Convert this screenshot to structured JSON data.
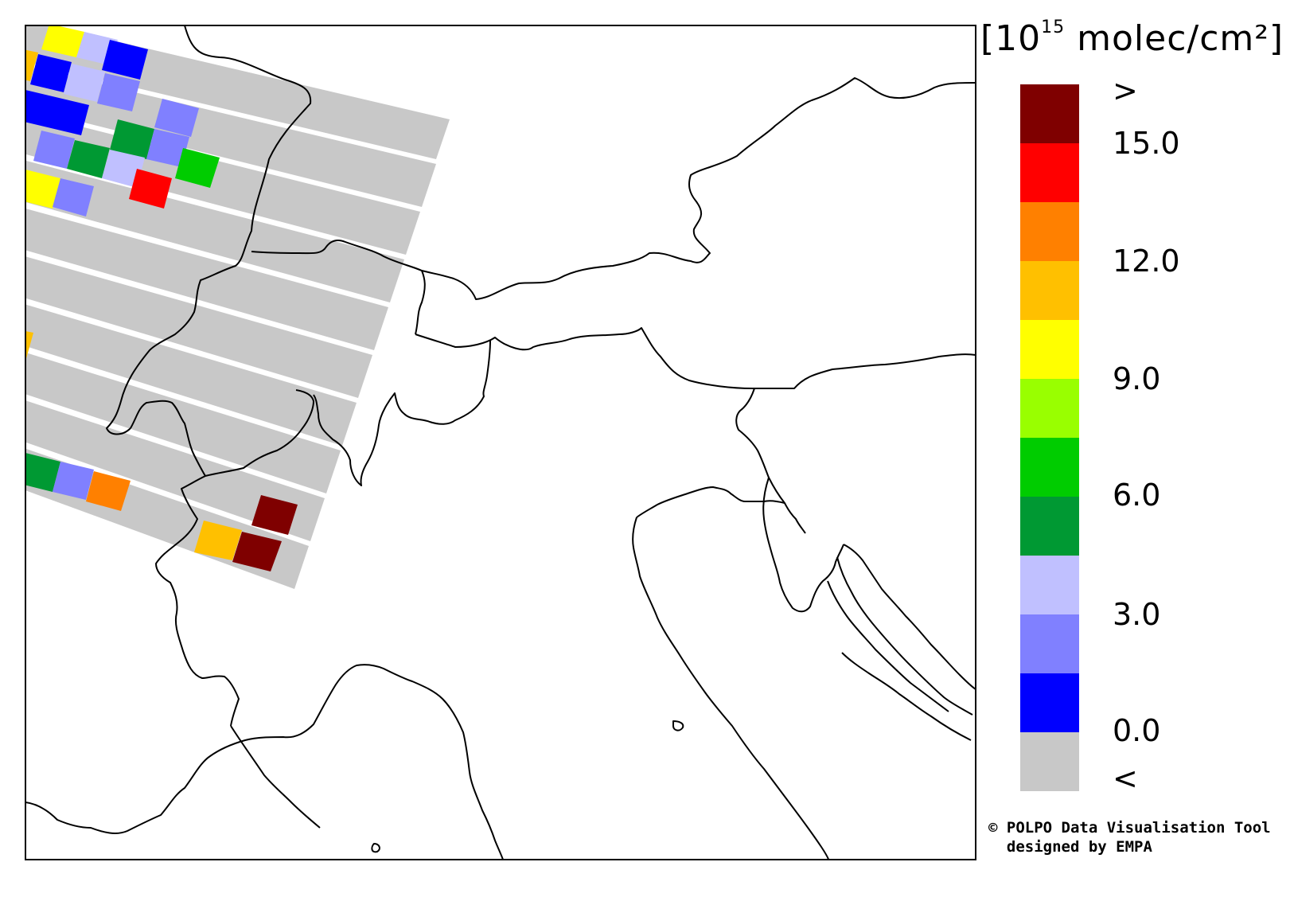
{
  "legend": {
    "unit_prefix": "[10",
    "unit_exponent": "15",
    "unit_suffix": " molec/cm²]",
    "tick_labels": [
      ">",
      "15.0",
      "12.0",
      "9.0",
      "6.0",
      "3.0",
      "0.0",
      "<"
    ],
    "color_bins": [
      "#7f0000",
      "#ff0000",
      "#ff8000",
      "#ffc000",
      "#ffff00",
      "#99ff00",
      "#00cc00",
      "#009933",
      "#c0c0ff",
      "#8080ff",
      "#0000ff",
      "#c8c8c8"
    ]
  },
  "credit": {
    "line1": "© POLPO Data Visualisation Tool",
    "line2": "  designed by EMPA"
  }
}
